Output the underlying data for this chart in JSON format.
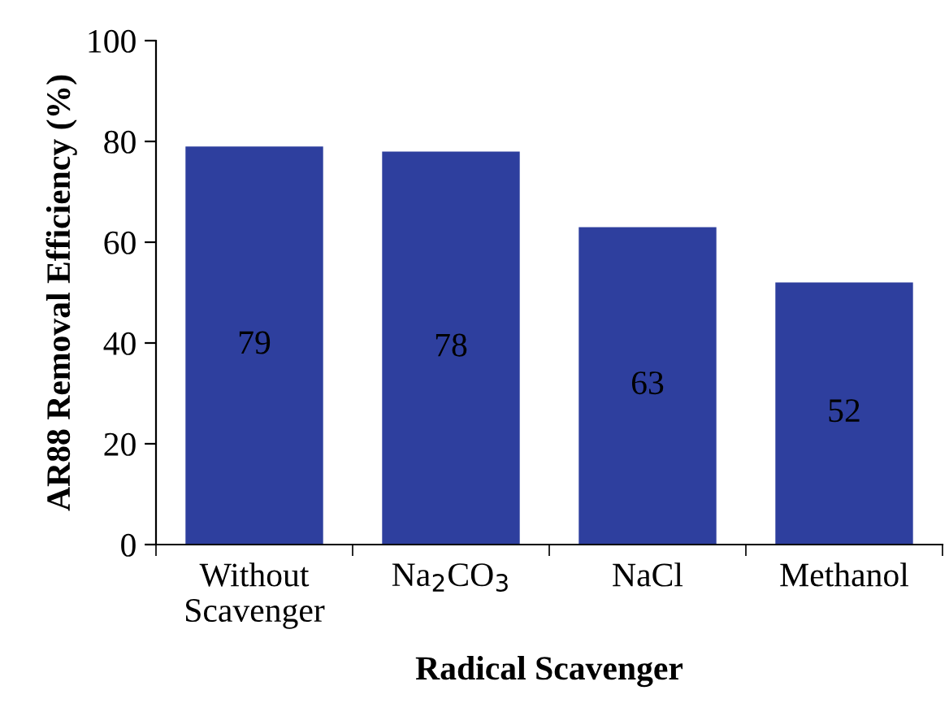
{
  "chart_data": {
    "type": "bar",
    "xlabel": "Radical Scavenger",
    "ylabel": "AR88 Removal Efficiency (%)",
    "categories": [
      "Without\nScavenger",
      "Na$_{2}$CO$_{3}$",
      "NaCl",
      "Methanol"
    ],
    "values": [
      79,
      78,
      63,
      52
    ],
    "color": "#2e3f9e",
    "ylim": [
      0,
      100
    ],
    "yticks": [
      0,
      20,
      40,
      60,
      80,
      100
    ],
    "grid": false,
    "data_labels": true
  }
}
